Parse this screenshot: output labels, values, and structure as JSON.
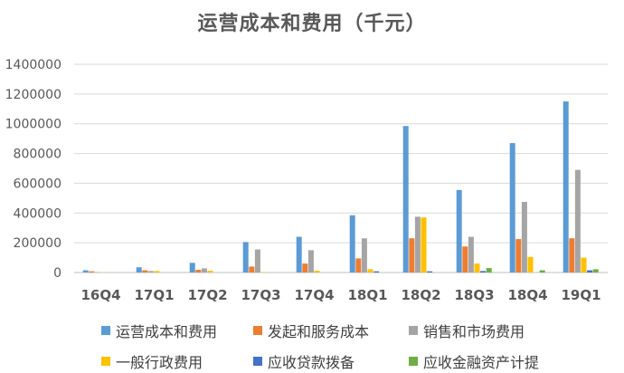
{
  "chart_data": {
    "type": "bar",
    "title": "运营成本和费用（千元）",
    "categories": [
      "16Q4",
      "17Q1",
      "17Q2",
      "17Q3",
      "17Q4",
      "18Q1",
      "18Q2",
      "18Q3",
      "18Q4",
      "19Q1"
    ],
    "y_ticks": [
      "0",
      "200000",
      "400000",
      "600000",
      "800000",
      "1000000",
      "1200000",
      "1400000"
    ],
    "ylim": [
      0,
      1400000
    ],
    "grid": true,
    "legend_position": "bottom",
    "series": [
      {
        "name": "运营成本和费用",
        "color": "#5B9BD5",
        "values": [
          15000,
          35000,
          65000,
          205000,
          240000,
          385000,
          985000,
          555000,
          870000,
          1150000
        ]
      },
      {
        "name": "发起和服务成本",
        "color": "#ED7D31",
        "values": [
          8000,
          15000,
          18000,
          40000,
          60000,
          95000,
          230000,
          175000,
          225000,
          230000
        ]
      },
      {
        "name": "销售和市场费用",
        "color": "#A5A5A5",
        "values": [
          3000,
          10000,
          28000,
          155000,
          150000,
          230000,
          375000,
          240000,
          475000,
          690000
        ]
      },
      {
        "name": "一般行政费用",
        "color": "#FFC000",
        "values": [
          2000,
          10000,
          12000,
          3000,
          12000,
          22000,
          370000,
          60000,
          105000,
          100000
        ]
      },
      {
        "name": "应收贷款拨备",
        "color": "#4472C4",
        "values": [
          0,
          0,
          0,
          0,
          0,
          8000,
          8000,
          10000,
          0,
          15000
        ]
      },
      {
        "name": "应收金融资产计提",
        "color": "#70AD47",
        "values": [
          0,
          0,
          0,
          0,
          0,
          0,
          0,
          30000,
          15000,
          22000
        ]
      }
    ]
  }
}
